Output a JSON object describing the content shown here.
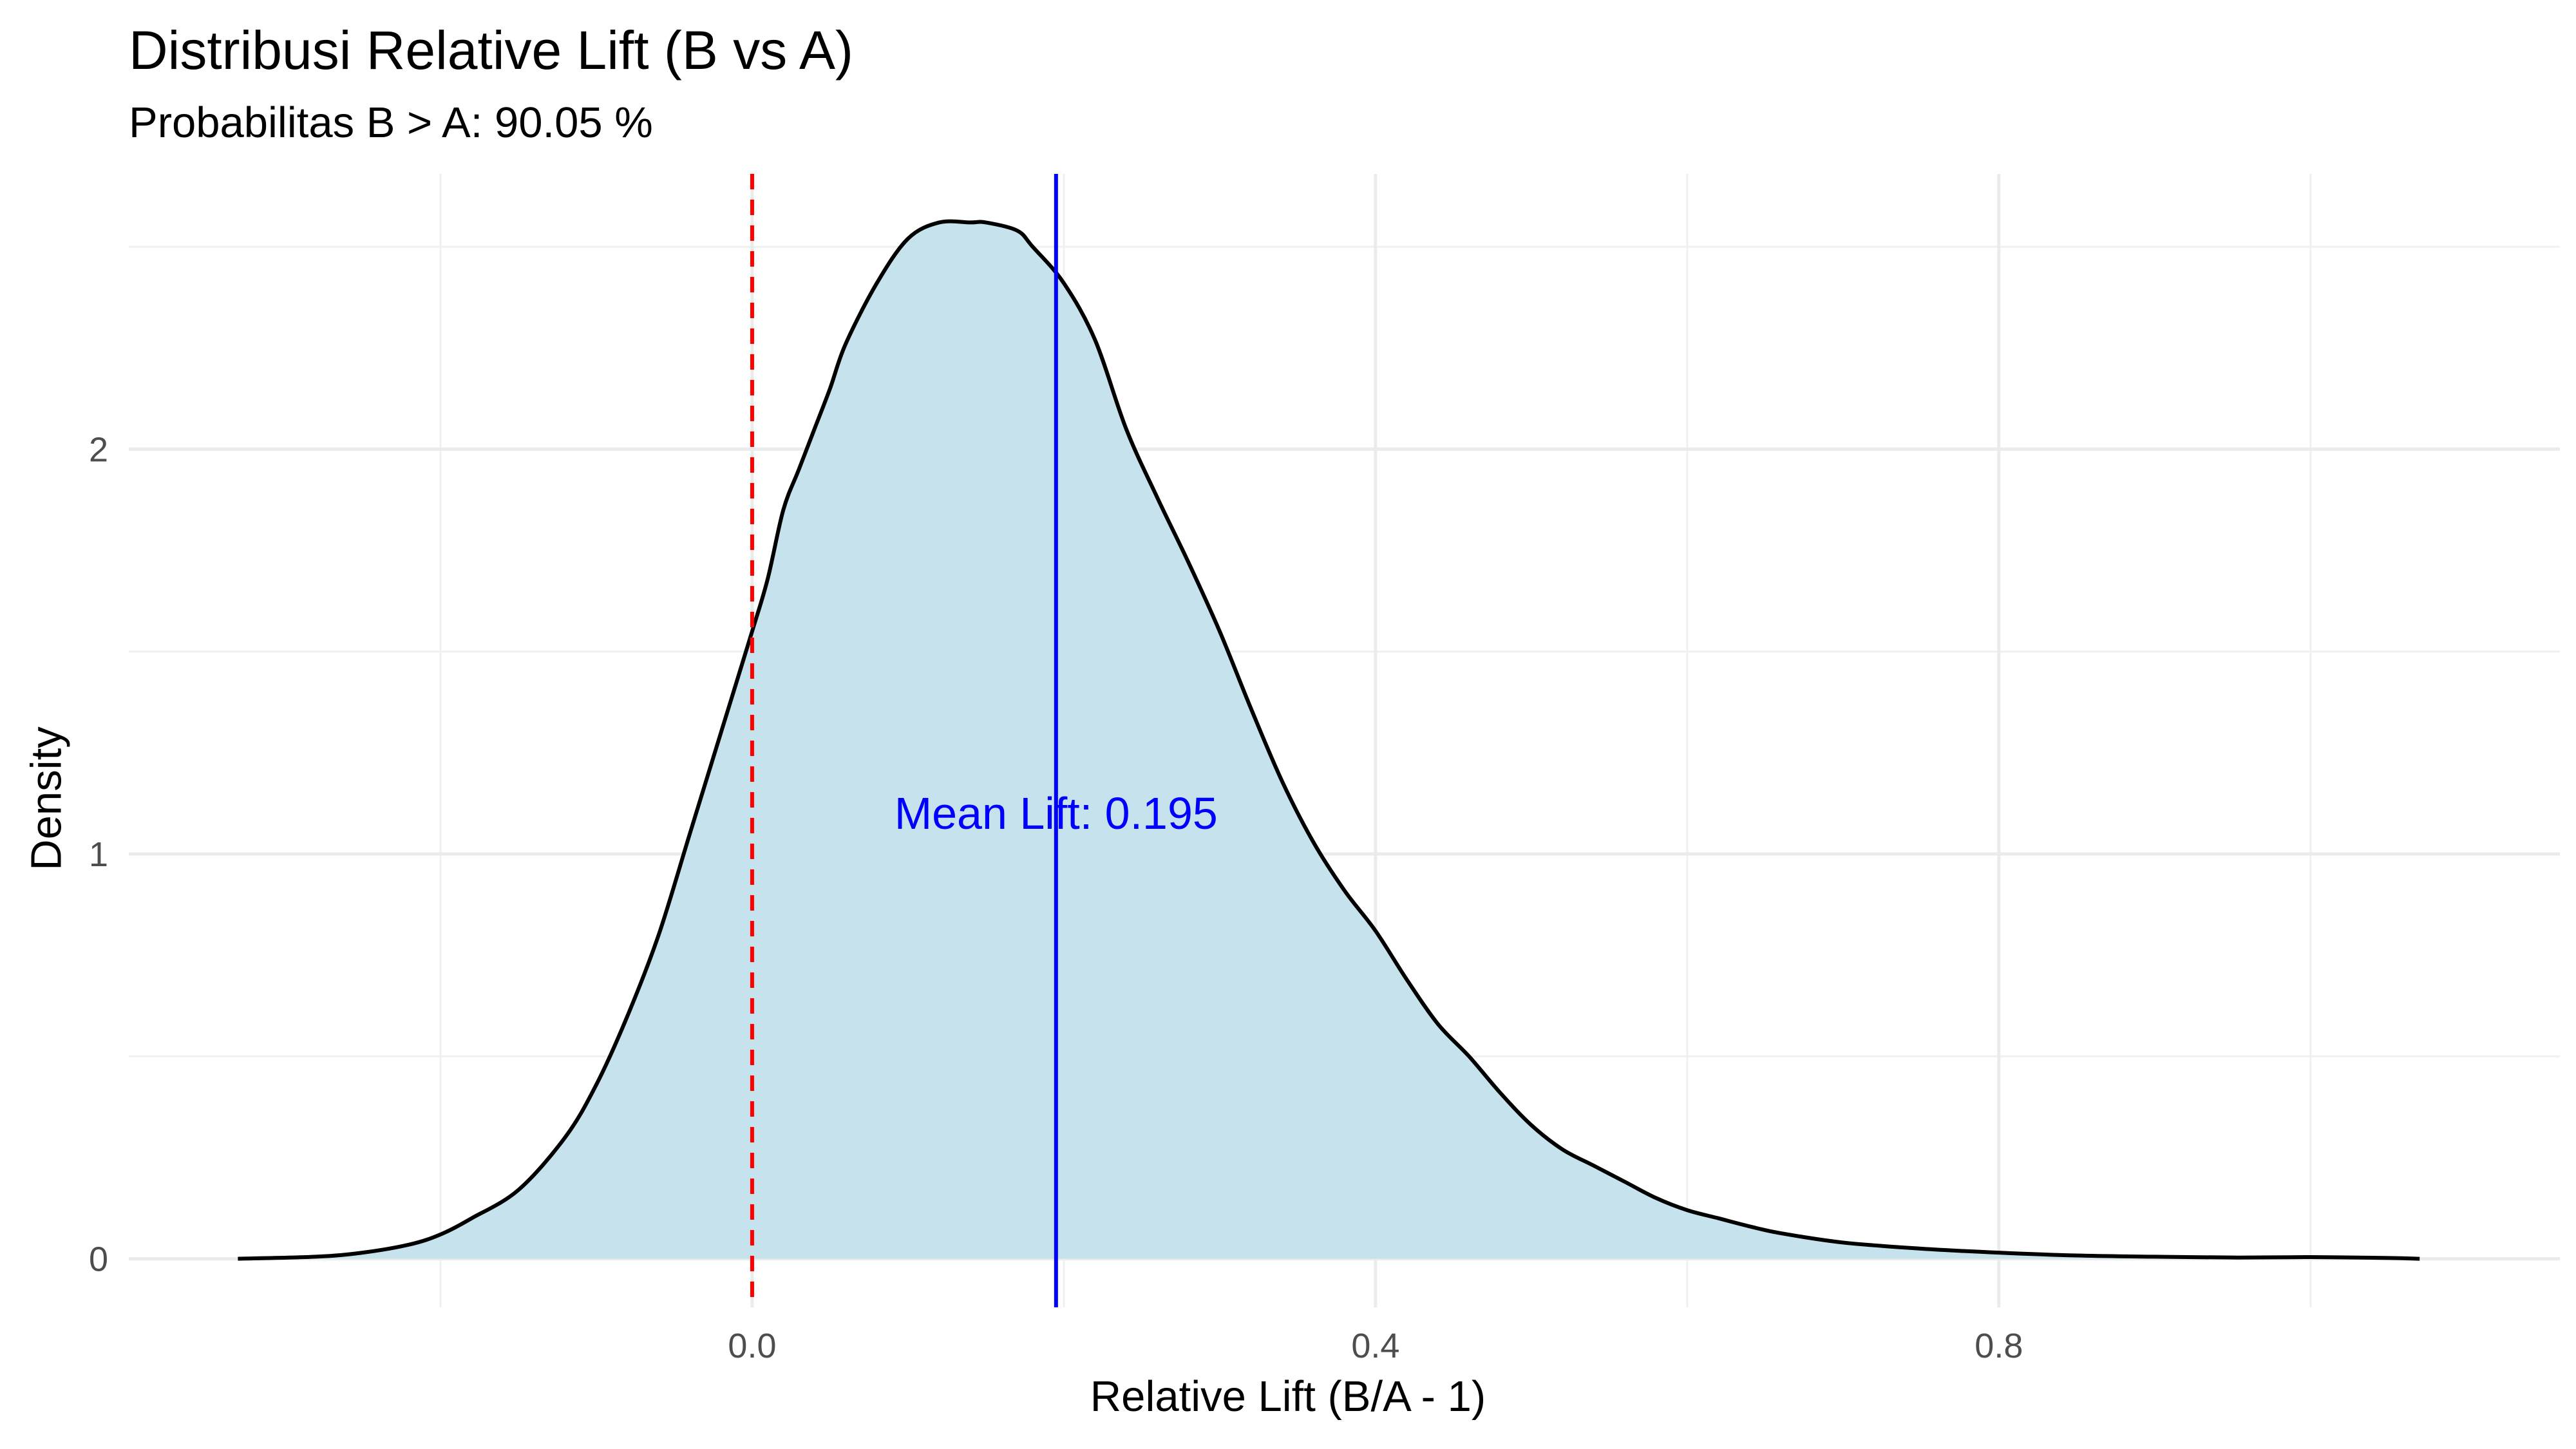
{
  "chart_data": {
    "type": "area",
    "title": "Distribusi Relative Lift (B vs A)",
    "subtitle": "Probabilitas B > A: 90.05 %",
    "xlabel": "Relative Lift (B/A - 1)",
    "ylabel": "Density",
    "xlim": [
      -0.4,
      1.16
    ],
    "ylim": [
      -0.12,
      2.68
    ],
    "x_ticks": [
      0.0,
      0.4,
      0.8
    ],
    "x_tick_labels": [
      "0.0",
      "0.4",
      "0.8"
    ],
    "y_ticks": [
      0,
      1,
      2
    ],
    "y_tick_labels": [
      "0",
      "1",
      "2"
    ],
    "grid": true,
    "fill_color": "#c6e2ec",
    "line_color": "#000000",
    "series": [
      {
        "x": [
          -0.33,
          -0.28,
          -0.25,
          -0.22,
          -0.2,
          -0.18,
          -0.15,
          -0.12,
          -0.1,
          -0.08,
          -0.06,
          -0.04,
          -0.02,
          0.0,
          0.01,
          0.02,
          0.03,
          0.04,
          0.05,
          0.06,
          0.08,
          0.1,
          0.12,
          0.14,
          0.15,
          0.17,
          0.18,
          0.2,
          0.22,
          0.24,
          0.26,
          0.28,
          0.3,
          0.32,
          0.34,
          0.36,
          0.38,
          0.4,
          0.42,
          0.44,
          0.46,
          0.48,
          0.5,
          0.52,
          0.54,
          0.56,
          0.58,
          0.6,
          0.62,
          0.64,
          0.66,
          0.7,
          0.75,
          0.8,
          0.85,
          0.9,
          0.95,
          1.0,
          1.05,
          1.07
        ],
        "y": [
          0.0,
          0.005,
          0.015,
          0.035,
          0.06,
          0.1,
          0.17,
          0.3,
          0.43,
          0.6,
          0.8,
          1.05,
          1.3,
          1.55,
          1.68,
          1.85,
          1.95,
          2.05,
          2.15,
          2.26,
          2.41,
          2.52,
          2.56,
          2.56,
          2.56,
          2.54,
          2.5,
          2.41,
          2.27,
          2.05,
          1.88,
          1.72,
          1.55,
          1.36,
          1.18,
          1.03,
          0.91,
          0.81,
          0.69,
          0.58,
          0.5,
          0.41,
          0.33,
          0.27,
          0.23,
          0.19,
          0.15,
          0.12,
          0.1,
          0.08,
          0.063,
          0.04,
          0.025,
          0.015,
          0.008,
          0.005,
          0.003,
          0.004,
          0.002,
          0.0
        ]
      }
    ],
    "reference_lines": [
      {
        "x": 0.0,
        "color": "#ff0000",
        "style": "dashed"
      },
      {
        "x": 0.195,
        "color": "#0000ff",
        "style": "solid"
      }
    ],
    "annotations": [
      {
        "text": "Mean Lift: 0.195",
        "x": 0.195,
        "y": 1.1,
        "color": "#0000ff"
      }
    ]
  }
}
